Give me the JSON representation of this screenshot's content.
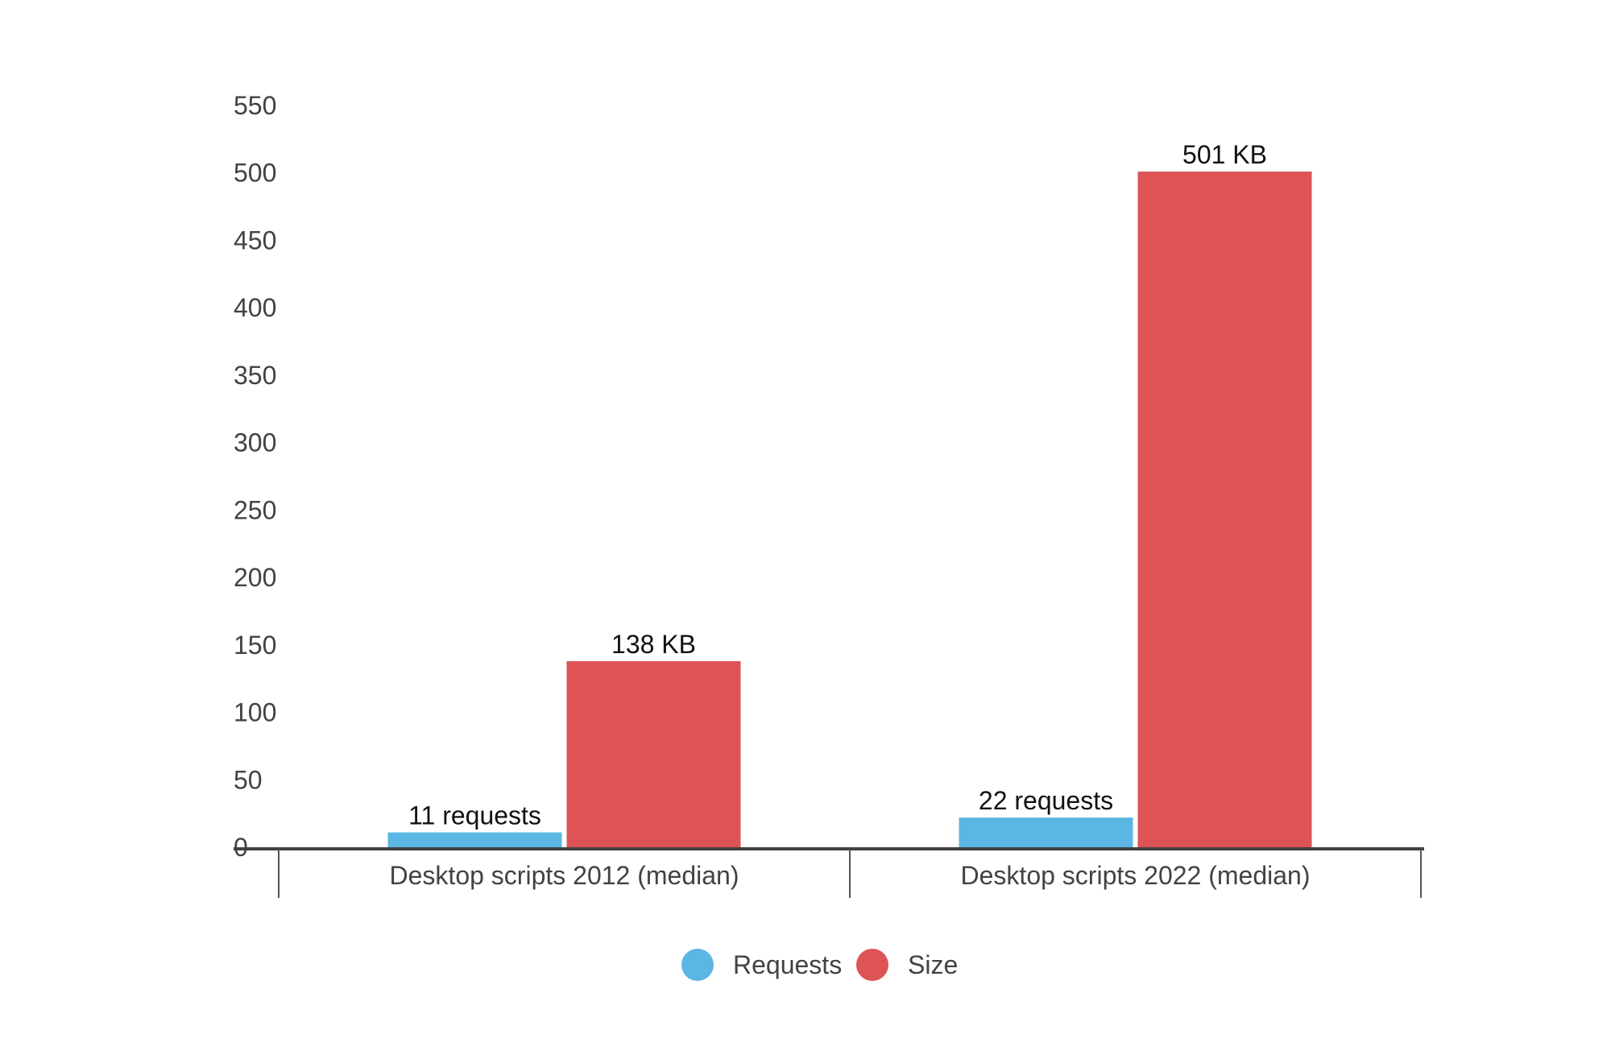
{
  "chart_data": {
    "type": "bar",
    "title": "",
    "xlabel": "",
    "ylabel": "",
    "ylim": [
      0,
      550
    ],
    "yticks": [
      0,
      50,
      100,
      150,
      200,
      250,
      300,
      350,
      400,
      450,
      500,
      550
    ],
    "grid": false,
    "legend_position": "bottom-center",
    "categories": [
      "Desktop scripts 2012 (median)",
      "Desktop scripts 2022 (median)"
    ],
    "series": [
      {
        "name": "Requests",
        "color": "#5BB6E3",
        "values": [
          11,
          22
        ],
        "labels": [
          "11 requests",
          "22 requests"
        ]
      },
      {
        "name": "Size",
        "color": "#DD5356",
        "values": [
          138,
          501
        ],
        "labels": [
          "138 KB",
          "501 KB"
        ]
      }
    ]
  }
}
